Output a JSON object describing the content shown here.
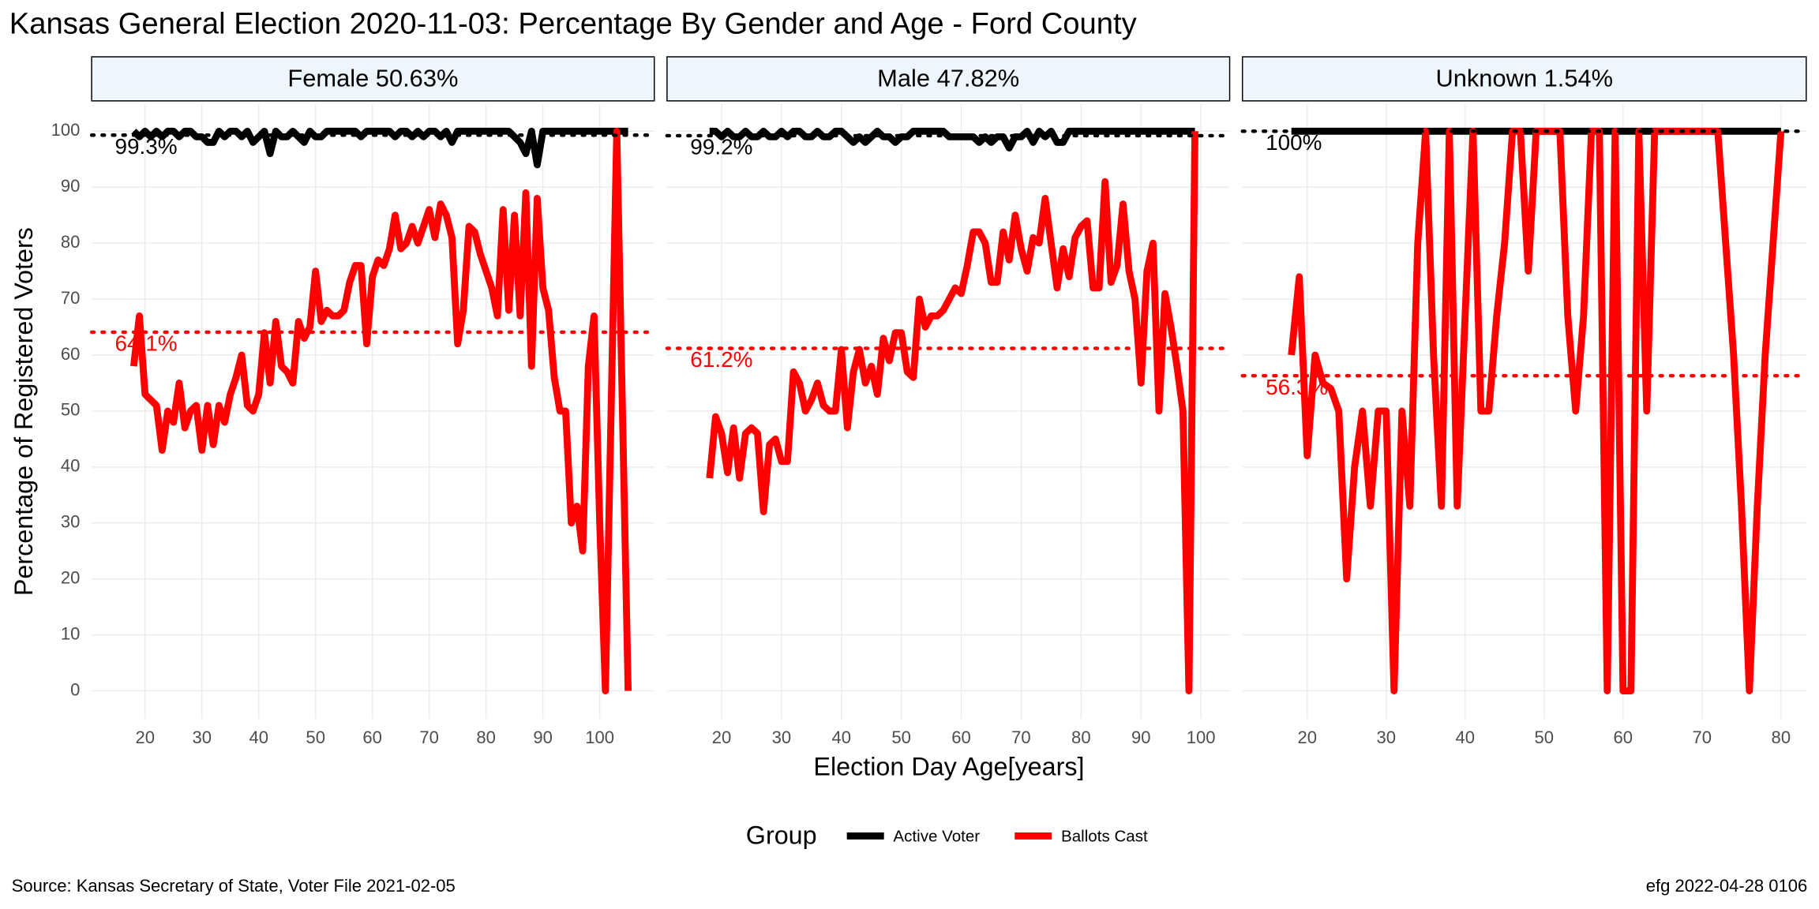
{
  "title": "Kansas General Election 2020-11-03:  Percentage By Gender and Age - Ford County",
  "x_label": "Election Day Age[years]",
  "y_label": "Percentage of Registered Voters",
  "legend_title": "Group",
  "source": "Source:  Kansas Secretary of State, Voter File  2021-02-05",
  "credit": "efg 2022-04-28 0106",
  "chart_data": [
    {
      "type": "line",
      "title": "Female 50.63%",
      "x": [
        18,
        19,
        20,
        21,
        22,
        23,
        24,
        25,
        26,
        27,
        28,
        29,
        30,
        31,
        32,
        33,
        34,
        35,
        36,
        37,
        38,
        39,
        40,
        41,
        42,
        43,
        44,
        45,
        46,
        47,
        48,
        49,
        50,
        51,
        52,
        53,
        54,
        55,
        56,
        57,
        58,
        59,
        60,
        61,
        62,
        63,
        64,
        65,
        66,
        67,
        68,
        69,
        70,
        71,
        72,
        73,
        74,
        75,
        76,
        77,
        78,
        79,
        80,
        81,
        82,
        83,
        84,
        85,
        86,
        87,
        88,
        89,
        90,
        91,
        92,
        93,
        94,
        95,
        96,
        97,
        98,
        99,
        100,
        101,
        103,
        105
      ],
      "series": [
        {
          "name": "Active Voter",
          "color": "#000000",
          "values": [
            100,
            99,
            100,
            99,
            100,
            99,
            100,
            100,
            99,
            100,
            100,
            99,
            99,
            98,
            98,
            100,
            99,
            100,
            100,
            99,
            100,
            98,
            99,
            100,
            96,
            100,
            99,
            99,
            100,
            99,
            98,
            100,
            99,
            99,
            100,
            100,
            100,
            100,
            100,
            100,
            99,
            100,
            100,
            100,
            100,
            100,
            99,
            100,
            100,
            99,
            100,
            99,
            100,
            100,
            99,
            100,
            98,
            100,
            100,
            100,
            100,
            100,
            100,
            100,
            100,
            100,
            100,
            99,
            98,
            96,
            100,
            94,
            100,
            100,
            100,
            100,
            100,
            100,
            100,
            100,
            100,
            100,
            100,
            100,
            100,
            100
          ]
        },
        {
          "name": "Ballots Cast",
          "color": "#ff0000",
          "values": [
            58,
            67,
            53,
            52,
            51,
            43,
            50,
            48,
            55,
            47,
            50,
            51,
            43,
            51,
            44,
            51,
            48,
            53,
            56,
            60,
            51,
            50,
            53,
            64,
            55,
            66,
            58,
            57,
            55,
            66,
            63,
            65,
            75,
            66,
            68,
            67,
            67,
            68,
            73,
            76,
            76,
            62,
            74,
            77,
            76,
            79,
            85,
            79,
            80,
            83,
            80,
            83,
            86,
            81,
            87,
            85,
            81,
            62,
            68,
            83,
            82,
            78,
            75,
            72,
            67,
            86,
            68,
            85,
            67,
            89,
            58,
            88,
            72,
            68,
            56,
            50,
            50,
            30,
            33,
            25,
            58,
            67,
            30,
            0,
            100,
            0
          ]
        }
      ],
      "reference_lines": [
        {
          "value": 99.3,
          "label": "99.3%",
          "color": "#000000"
        },
        {
          "value": 64.1,
          "label": "64.1%",
          "color": "#ff0000"
        }
      ],
      "xlim": [
        10.6,
        109.6
      ],
      "xticks": [
        20,
        30,
        40,
        50,
        60,
        70,
        80,
        90,
        100
      ],
      "ylim": [
        -5,
        104.8
      ],
      "yticks": [
        0,
        10,
        20,
        30,
        40,
        50,
        60,
        70,
        80,
        90,
        100
      ],
      "grid": true
    },
    {
      "type": "line",
      "title": "Male 47.82%",
      "x": [
        18,
        19,
        20,
        21,
        22,
        23,
        24,
        25,
        26,
        27,
        28,
        29,
        30,
        31,
        32,
        33,
        34,
        35,
        36,
        37,
        38,
        39,
        40,
        41,
        42,
        43,
        44,
        45,
        46,
        47,
        48,
        49,
        50,
        51,
        52,
        53,
        54,
        55,
        56,
        57,
        58,
        59,
        60,
        61,
        62,
        63,
        64,
        65,
        66,
        67,
        68,
        69,
        70,
        71,
        72,
        73,
        74,
        75,
        76,
        77,
        78,
        79,
        80,
        81,
        82,
        83,
        84,
        85,
        86,
        87,
        88,
        89,
        90,
        91,
        92,
        93,
        94,
        95,
        96,
        97,
        98,
        99
      ],
      "series": [
        {
          "name": "Active Voter",
          "color": "#000000",
          "values": [
            100,
            100,
            99,
            100,
            99,
            99,
            100,
            99,
            99,
            100,
            99,
            99,
            100,
            99,
            100,
            100,
            99,
            99,
            100,
            99,
            99,
            100,
            100,
            99,
            98,
            99,
            98,
            99,
            100,
            99,
            99,
            98,
            99,
            99,
            100,
            100,
            100,
            100,
            100,
            100,
            99,
            99,
            99,
            99,
            99,
            98,
            99,
            98,
            99,
            99,
            97,
            99,
            99,
            100,
            98,
            100,
            99,
            100,
            98,
            98,
            100,
            100,
            100,
            100,
            100,
            100,
            100,
            100,
            100,
            100,
            100,
            100,
            100,
            100,
            100,
            100,
            100,
            100,
            100,
            100,
            100,
            100
          ]
        },
        {
          "name": "Ballots Cast",
          "color": "#ff0000",
          "values": [
            38,
            49,
            46,
            39,
            47,
            38,
            46,
            47,
            46,
            32,
            44,
            45,
            41,
            41,
            57,
            55,
            50,
            52,
            55,
            51,
            50,
            50,
            61,
            47,
            57,
            61,
            55,
            58,
            53,
            63,
            59,
            64,
            64,
            57,
            56,
            70,
            65,
            67,
            67,
            68,
            70,
            72,
            71,
            76,
            82,
            82,
            80,
            73,
            73,
            82,
            77,
            85,
            79,
            75,
            81,
            80,
            88,
            80,
            72,
            79,
            74,
            81,
            83,
            84,
            72,
            72,
            91,
            73,
            76,
            87,
            75,
            70,
            55,
            75,
            80,
            50,
            71,
            65,
            58,
            50,
            0,
            100
          ]
        }
      ],
      "reference_lines": [
        {
          "value": 99.2,
          "label": "99.2%",
          "color": "#000000"
        },
        {
          "value": 61.2,
          "label": "61.2%",
          "color": "#ff0000"
        }
      ],
      "xlim": [
        10.9,
        104.8
      ],
      "xticks": [
        20,
        30,
        40,
        50,
        60,
        70,
        80,
        90,
        100
      ],
      "ylim": [
        -5,
        104.8
      ],
      "yticks": [
        0,
        10,
        20,
        30,
        40,
        50,
        60,
        70,
        80,
        90,
        100
      ],
      "grid": true
    },
    {
      "type": "line",
      "title": "Unknown 1.54%",
      "x": [
        18,
        19,
        20,
        21,
        22,
        23,
        24,
        25,
        26,
        27,
        28,
        29,
        30,
        31,
        32,
        33,
        34,
        35,
        36,
        37,
        38,
        39,
        40,
        41,
        42,
        43,
        44,
        45,
        46,
        47,
        48,
        49,
        50,
        51,
        52,
        53,
        54,
        55,
        56,
        57,
        58,
        59,
        60,
        61,
        62,
        63,
        64,
        65,
        66,
        67,
        68,
        69,
        70,
        71,
        72,
        73,
        74,
        75,
        76,
        77,
        78,
        79,
        80
      ],
      "series": [
        {
          "name": "Active Voter",
          "color": "#000000",
          "values": [
            100,
            100,
            100,
            100,
            100,
            100,
            100,
            100,
            100,
            100,
            100,
            100,
            100,
            100,
            100,
            100,
            100,
            100,
            100,
            100,
            100,
            100,
            100,
            100,
            100,
            100,
            100,
            100,
            100,
            100,
            100,
            100,
            100,
            100,
            100,
            100,
            100,
            100,
            100,
            100,
            100,
            100,
            100,
            100,
            100,
            100,
            100,
            100,
            100,
            100,
            100,
            100,
            100,
            100,
            100,
            100,
            100,
            100,
            100,
            100,
            100,
            100,
            100
          ]
        },
        {
          "name": "Ballots Cast",
          "color": "#ff0000",
          "values": [
            60,
            74,
            42,
            60,
            55,
            54,
            50,
            20,
            40,
            50,
            33,
            50,
            50,
            0,
            50,
            33,
            80,
            100,
            60,
            33,
            100,
            33,
            67,
            100,
            50,
            50,
            67,
            80,
            100,
            100,
            75,
            100,
            100,
            100,
            100,
            67,
            50,
            67,
            100,
            100,
            0,
            100,
            0,
            0,
            100,
            50,
            100,
            100,
            100,
            100,
            100,
            100,
            100,
            100,
            100,
            80,
            60,
            33,
            0,
            33,
            60,
            80,
            100
          ]
        }
      ],
      "reference_lines": [
        {
          "value": 100,
          "label": "100%",
          "color": "#000000"
        },
        {
          "value": 56.3,
          "label": "56.3%",
          "color": "#ff0000"
        }
      ],
      "xlim": [
        11.8,
        83.2
      ],
      "xticks": [
        20,
        30,
        40,
        50,
        60,
        70,
        80
      ],
      "ylim": [
        -5,
        104.8
      ],
      "yticks": [
        0,
        10,
        20,
        30,
        40,
        50,
        60,
        70,
        80,
        90,
        100
      ],
      "grid": true
    }
  ]
}
